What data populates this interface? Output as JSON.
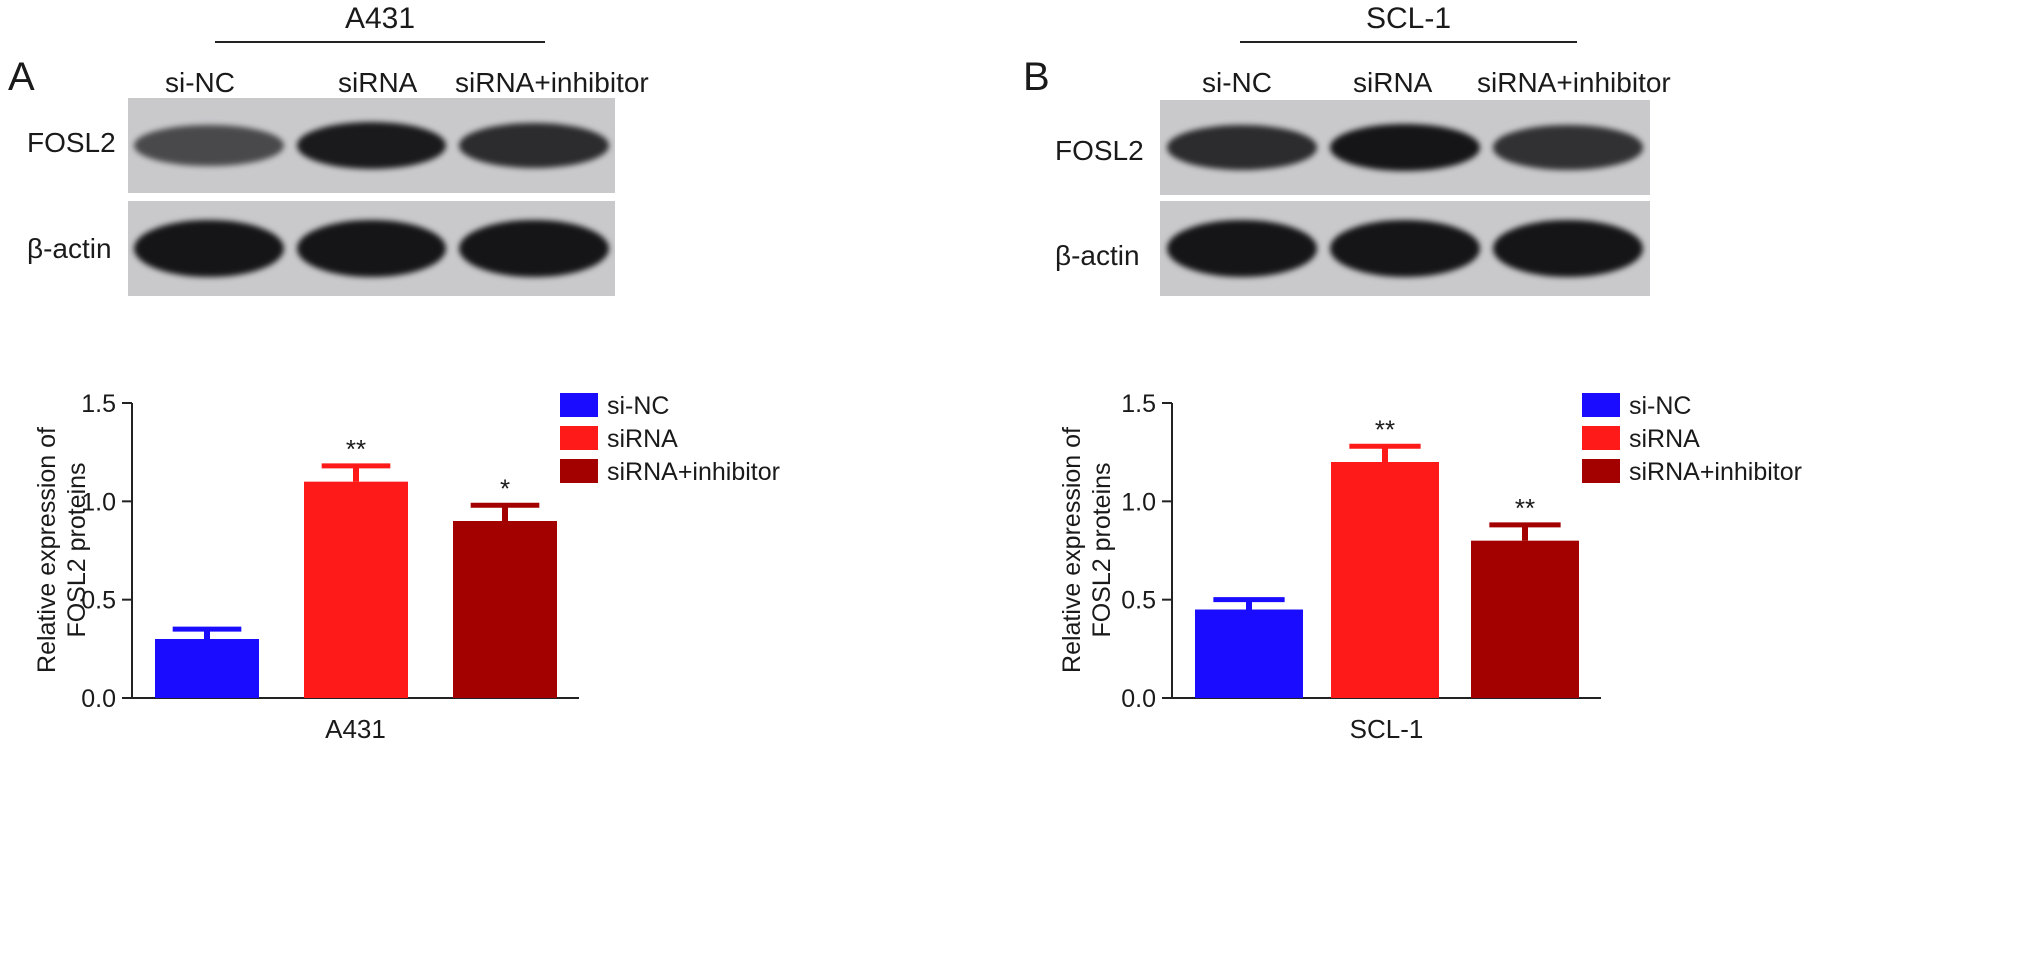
{
  "colors": {
    "si_nc": "#1a0dff",
    "sirna": "#ff1a1a",
    "sirna_inhibitor": "#a30000",
    "blot_bg": "#c9c9cc",
    "band": "#151517"
  },
  "panels": [
    {
      "label": "A",
      "cell_line": "A431",
      "lanes": [
        "si-NC",
        "siRNA",
        "siRNA+inhibitor"
      ],
      "blot_rows": [
        "FOSL2",
        "β-actin"
      ],
      "band_intensity": {
        "FOSL2": [
          0.55,
          0.95,
          0.8
        ],
        "β-actin": [
          1.0,
          1.0,
          1.0
        ]
      },
      "legend": [
        "si-NC",
        "siRNA",
        "siRNA+inhibitor"
      ]
    },
    {
      "label": "B",
      "cell_line": "SCL-1",
      "lanes": [
        "si-NC",
        "siRNA",
        "siRNA+inhibitor"
      ],
      "blot_rows": [
        "FOSL2",
        "β-actin"
      ],
      "band_intensity": {
        "FOSL2": [
          0.8,
          1.0,
          0.75
        ],
        "β-actin": [
          1.0,
          1.0,
          1.0
        ]
      },
      "legend": [
        "si-NC",
        "siRNA",
        "siRNA+inhibitor"
      ]
    }
  ],
  "chart_data": [
    {
      "type": "bar",
      "categories": [
        "si-NC",
        "siRNA",
        "siRNA+inhibitor"
      ],
      "values": [
        0.3,
        1.1,
        0.9
      ],
      "errors": [
        0.05,
        0.08,
        0.08
      ],
      "significance": [
        "",
        "**",
        "*"
      ],
      "xlabel": "A431",
      "ylabel": "Relative expression of FOSL2 proteins",
      "ylim": [
        0,
        1.5
      ],
      "yticks": [
        "0.0",
        "0.5",
        "1.0",
        "1.5"
      ],
      "legend": "right",
      "grid": false
    },
    {
      "type": "bar",
      "categories": [
        "si-NC",
        "siRNA",
        "siRNA+inhibitor"
      ],
      "values": [
        0.45,
        1.2,
        0.8
      ],
      "errors": [
        0.05,
        0.08,
        0.08
      ],
      "significance": [
        "",
        "**",
        "**"
      ],
      "xlabel": "SCL-1",
      "ylabel": "Relative expression of FOSL2 proteins",
      "ylim": [
        0,
        1.5
      ],
      "yticks": [
        "0.0",
        "0.5",
        "1.0",
        "1.5"
      ],
      "legend": "right",
      "grid": false
    }
  ]
}
